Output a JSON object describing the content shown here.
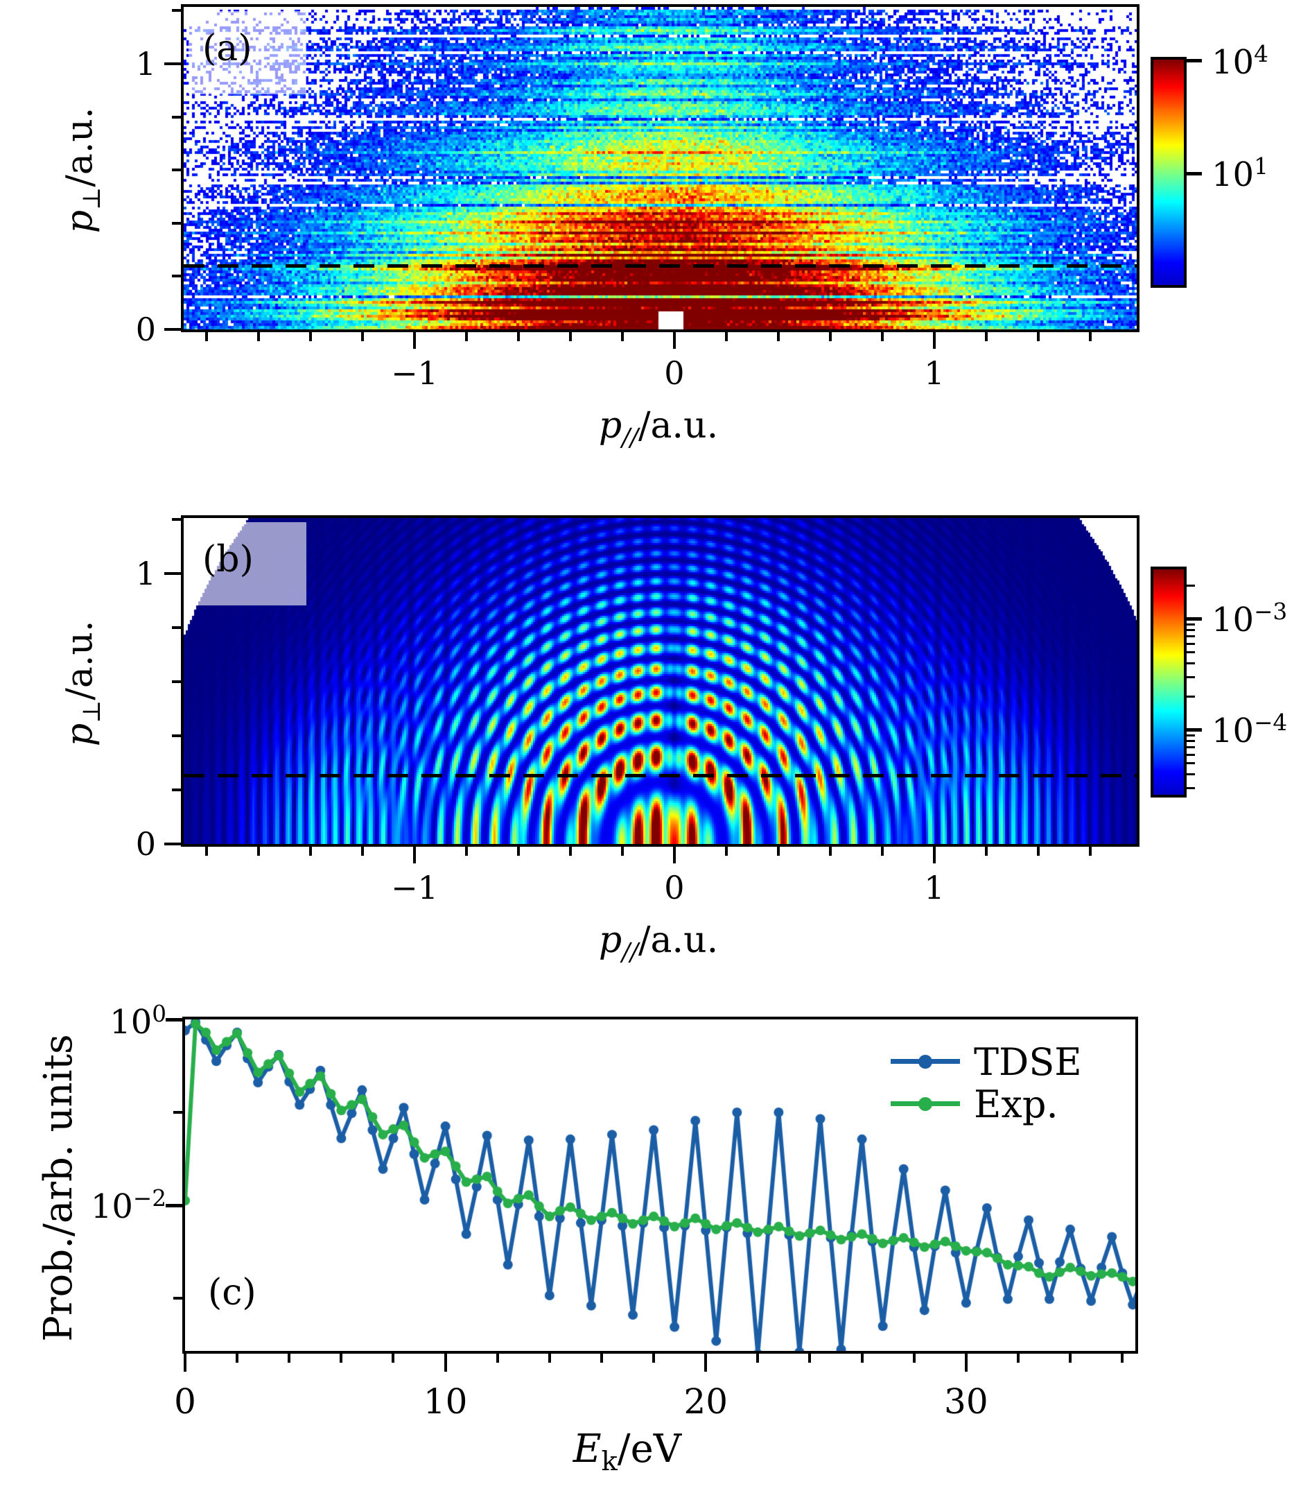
{
  "figure": {
    "bg": "#ffffff"
  },
  "colors": {
    "tdse_blue": "#1b5ea6",
    "exp_green": "#28ae4a",
    "navy": "#000080",
    "dash_black": "#000000",
    "jet_stops": [
      "#7f0000",
      "#ff0000",
      "#ffff00",
      "#80ff80",
      "#00ffff",
      "#0000ff",
      "#0000c8"
    ]
  },
  "panel_a": {
    "tag": "(a)",
    "ylabel": {
      "base": "p",
      "sub": "⊥",
      "rest": "/a.u."
    },
    "xlabel": {
      "base": "p",
      "sub": "//",
      "rest": "/a.u."
    },
    "xlim": [
      -1.888,
      1.779
    ],
    "ylim": [
      0,
      1.214
    ],
    "xticks": {
      "major": [
        {
          "v": -1,
          "label": "−1"
        },
        {
          "v": 0,
          "label": "0"
        },
        {
          "v": 1,
          "label": "1"
        }
      ],
      "minor_step": 0.2
    },
    "yticks": {
      "major": [
        {
          "v": 0,
          "label": "0"
        },
        {
          "v": 1,
          "label": "1"
        }
      ],
      "minor_step": 0.2
    },
    "dashed_y": 0.24,
    "colorbar": {
      "top_value": 4.1,
      "bottom_value": -2.03,
      "ticks": [
        {
          "v": 4,
          "mant": "10",
          "exp": "4"
        },
        {
          "v": 1,
          "mant": "10",
          "exp": "1"
        }
      ],
      "minor_log_ticks": false
    }
  },
  "panel_b": {
    "tag": "(b)",
    "ylabel": {
      "base": "p",
      "sub": "⊥",
      "rest": "/a.u."
    },
    "xlabel": {
      "base": "p",
      "sub": "//",
      "rest": "/a.u."
    },
    "xlim": [
      -1.888,
      1.779
    ],
    "ylim": [
      0,
      1.205
    ],
    "xticks": {
      "major": [
        {
          "v": -1,
          "label": "−1"
        },
        {
          "v": 0,
          "label": "0"
        },
        {
          "v": 1,
          "label": "1"
        }
      ],
      "minor_step": 0.2
    },
    "yticks": {
      "major": [
        {
          "v": 0,
          "label": "0"
        },
        {
          "v": 1,
          "label": "1"
        }
      ],
      "minor_step": 0.2
    },
    "dashed_y": 0.254,
    "colorbar": {
      "top_value": -2.53,
      "bottom_value": -4.6,
      "ticks": [
        {
          "v": -3,
          "mant": "10",
          "exp": "−3"
        },
        {
          "v": -4,
          "mant": "10",
          "exp": "−4"
        }
      ],
      "minor_log_ticks": true
    }
  },
  "panel_c": {
    "tag": "(c)",
    "ylabel": "Prob./arb. units",
    "xlabel": {
      "base": "E",
      "sub": "k",
      "rest": "/eV"
    },
    "xlim": [
      0,
      36.5
    ],
    "ylim_log10": [
      -3.567,
      0
    ],
    "xticks_major": [
      {
        "v": 0,
        "label": "0"
      },
      {
        "v": 10,
        "label": "10"
      },
      {
        "v": 20,
        "label": "20"
      },
      {
        "v": 30,
        "label": "30"
      }
    ],
    "xtick_minor_step": 2,
    "ytick_labels": [
      {
        "log": 0,
        "mant": "10",
        "exp": "0"
      },
      {
        "log": -2,
        "mant": "10",
        "exp": "−2"
      }
    ],
    "ytick_minor_logs": [
      -1,
      -3
    ],
    "legend": [
      {
        "label": "TDSE",
        "color_key": "tdse_blue"
      },
      {
        "label": "Exp.",
        "color_key": "exp_green"
      }
    ]
  },
  "chart_data": [
    {
      "type": "heatmap",
      "panel": "a",
      "title": "",
      "xlabel": "p///a.u.",
      "ylabel": "p⊥/a.u.",
      "xlim": [
        -1.888,
        1.779
      ],
      "ylim": [
        0,
        1.214
      ],
      "colormap": "jet",
      "scale": "log",
      "colorbar_tick_values": [
        10000,
        10
      ],
      "dashed_line_p_perp": 0.24,
      "description": "Measured photoelectron momentum distribution: noisy speckled map, cold blue/cyan at large momentum, green-yellow toward center, hot orange-red band below the dashed cut near p_perp=0.24, white dropout pixels and horizontal detector streaks, small white notch at bottom center",
      "synthesis": {
        "seed": 7,
        "cell": 4,
        "threshold": 0.92,
        "span": 4.3,
        "noise": 0.55,
        "mult_noise": 0.22,
        "streak_frac": 0.22,
        "dim_frac": 0.1,
        "boost_frac": 0.1,
        "core_amp": 4.2,
        "core_wx": 1.05,
        "core_wy": 0.55,
        "halo_amp": 1.5,
        "halo_w": 2.4,
        "axis_amp": 0.9,
        "axis_w": 0.5,
        "bottom_amp": 1.2,
        "bottom_wy": 0.22,
        "bottom_wx": 1.5,
        "notch": {
          "x": 950,
          "y": 449,
          "w": 36,
          "h": 26
        }
      }
    },
    {
      "type": "heatmap",
      "panel": "b",
      "title": "",
      "xlabel": "p///a.u.",
      "ylabel": "p⊥/a.u.",
      "xlim": [
        -1.888,
        1.779
      ],
      "ylim": [
        0,
        1.205
      ],
      "colormap": "jet",
      "scale": "log",
      "colorbar_tick_values": [
        0.001,
        0.0001
      ],
      "dashed_line_p_perp": 0.254,
      "description": "TDSE photoelectron momentum distribution: navy background, concentric ATI rings about the origin modulated by vertical interference fingers, hot red lobes below p_perp=0.5 within |p_par|<0.7, fine side fan whiskers near |p_par|=1.3, white outside disk of radius ~2 a.u., dark central slit",
      "synthesis": {
        "cell": 3,
        "disk_r": 2.0,
        "disk_cx": -0.04,
        "env_amp": 1.35,
        "env_w": 0.8,
        "env_pow": 2.2,
        "ring_r2": 0.105,
        "fan_period": 0.07,
        "floor": 0.05,
        "side_amp": 0.3,
        "side_r": 1.28,
        "side_wr": 0.3,
        "side_wy": 0.5,
        "side_period": 0.045,
        "slit_w": 0.025,
        "gamma": 0.8
      }
    },
    {
      "type": "line",
      "panel": "c",
      "title": "",
      "xlabel": "Ek/eV",
      "ylabel": "Prob./arb. units",
      "xlim": [
        0,
        36.5
      ],
      "ylim": [
        0.00027,
        1.0
      ],
      "yscale": "log",
      "legend_position": "upper right",
      "marker": "circle",
      "series": [
        {
          "name": "TDSE",
          "color_key": "tdse_blue",
          "x_start": 0,
          "x_step": 0.4,
          "y_log10": [
            -0.12,
            -0.03,
            -0.22,
            -0.45,
            -0.28,
            -0.14,
            -0.42,
            -0.68,
            -0.51,
            -0.38,
            -0.67,
            -0.92,
            -0.75,
            -0.55,
            -0.92,
            -1.28,
            -1.01,
            -0.76,
            -1.19,
            -1.61,
            -1.28,
            -0.95,
            -1.45,
            -1.94,
            -1.55,
            -1.15,
            -1.72,
            -2.31,
            -1.8,
            -1.25,
            -1.94,
            -2.64,
            -1.99,
            -1.3,
            -2.12,
            -2.97,
            -2.14,
            -1.29,
            -2.19,
            -3.08,
            -2.16,
            -1.24,
            -2.22,
            -3.18,
            -2.19,
            -1.19,
            -2.24,
            -3.31,
            -2.22,
            -1.09,
            -2.27,
            -3.46,
            -2.24,
            -1.0,
            -2.3,
            -3.6,
            -2.27,
            -1.0,
            -2.32,
            -3.58,
            -2.3,
            -1.07,
            -2.35,
            -3.55,
            -2.32,
            -1.29,
            -2.39,
            -3.3,
            -2.38,
            -1.61,
            -2.45,
            -3.13,
            -2.44,
            -1.84,
            -2.51,
            -3.05,
            -2.49,
            -2.03,
            -2.56,
            -3.01,
            -2.55,
            -2.16,
            -2.62,
            -3.01,
            -2.61,
            -2.26,
            -2.68,
            -3.03,
            -2.67,
            -2.34,
            -2.73,
            -3.07,
            -2.76
          ]
        },
        {
          "name": "Exp.",
          "color_key": "exp_green",
          "x_start": 0,
          "x_step": 0.4,
          "y_log10": [
            -1.95,
            -0.05,
            -0.14,
            -0.33,
            -0.24,
            -0.15,
            -0.36,
            -0.57,
            -0.48,
            -0.39,
            -0.58,
            -0.78,
            -0.69,
            -0.61,
            -0.8,
            -0.98,
            -0.92,
            -0.86,
            -1.05,
            -1.24,
            -1.18,
            -1.14,
            -1.32,
            -1.49,
            -1.45,
            -1.42,
            -1.58,
            -1.75,
            -1.72,
            -1.69,
            -1.85,
            -1.98,
            -1.93,
            -1.89,
            -2.01,
            -2.12,
            -2.06,
            -2.02,
            -2.09,
            -2.16,
            -2.12,
            -2.08,
            -2.14,
            -2.2,
            -2.16,
            -2.12,
            -2.17,
            -2.23,
            -2.19,
            -2.14,
            -2.2,
            -2.26,
            -2.22,
            -2.19,
            -2.24,
            -2.29,
            -2.26,
            -2.23,
            -2.28,
            -2.33,
            -2.3,
            -2.27,
            -2.32,
            -2.37,
            -2.34,
            -2.31,
            -2.36,
            -2.41,
            -2.38,
            -2.35,
            -2.4,
            -2.45,
            -2.42,
            -2.39,
            -2.44,
            -2.49,
            -2.5,
            -2.51,
            -2.57,
            -2.64,
            -2.65,
            -2.66,
            -2.73,
            -2.77,
            -2.72,
            -2.67,
            -2.71,
            -2.76,
            -2.74,
            -2.73,
            -2.77,
            -2.82,
            -2.8
          ]
        }
      ]
    }
  ]
}
